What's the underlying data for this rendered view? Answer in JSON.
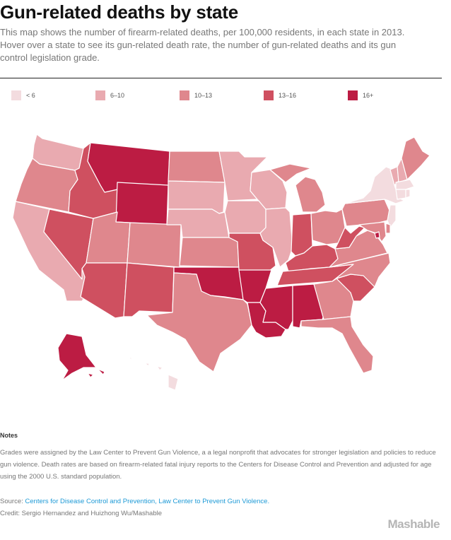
{
  "header": {
    "title": "Gun-related deaths by state",
    "subtitle": "This map shows the number of firearm-related deaths, per 100,000 residents, in each state in 2013. Hover over a state to see its gun-related death rate, the number of gun-related deaths and its gun control legislation grade."
  },
  "legend": [
    {
      "label": "< 6",
      "color": "#f3dcdf"
    },
    {
      "label": "6–10",
      "color": "#e9aab0"
    },
    {
      "label": "10–13",
      "color": "#df878d"
    },
    {
      "label": "13–16",
      "color": "#cf5060"
    },
    {
      "label": "16+",
      "color": "#bc1c43"
    }
  ],
  "map": {
    "states": {
      "WA": "6–10",
      "OR": "10–13",
      "CA": "6–10",
      "NV": "13–16",
      "ID": "13–16",
      "MT": "16+",
      "WY": "16+",
      "UT": "10–13",
      "AZ": "13–16",
      "CO": "10–13",
      "NM": "13–16",
      "ND": "10–13",
      "SD": "6–10",
      "NE": "6–10",
      "KS": "10–13",
      "OK": "16+",
      "TX": "10–13",
      "MN": "6–10",
      "IA": "6–10",
      "MO": "13–16",
      "AR": "16+",
      "LA": "16+",
      "WI": "6–10",
      "IL": "6–10",
      "MI": "10–13",
      "IN": "13–16",
      "OH": "10–13",
      "KY": "13–16",
      "TN": "13–16",
      "MS": "16+",
      "AL": "16+",
      "GA": "10–13",
      "FL": "10–13",
      "SC": "13–16",
      "NC": "10–13",
      "VA": "10–13",
      "WV": "13–16",
      "PA": "10–13",
      "NY": "< 6",
      "VT": "6–10",
      "NH": "6–10",
      "ME": "10–13",
      "MA": "< 6",
      "CT": "< 6",
      "RI": "< 6",
      "NJ": "< 6",
      "DE": "10–13",
      "MD": "10–13",
      "DC": "16+",
      "AK": "16+",
      "HI": "< 6"
    }
  },
  "notes": {
    "heading": "Notes",
    "text": "Grades were assigned by the Law Center to Prevent Gun Violence, a a legal nonprofit that advocates for stronger legislation and policies to reduce gun violence. Death rates are based on firearm-related fatal injury reports to the Centers for Disease Control and Prevention and adjusted for age using the 2000 U.S. standard population."
  },
  "source": {
    "label": "Source:",
    "links": "Centers for Disease Control and Prevention, Law Center to Prevent Gun Violence."
  },
  "credit": "Credit: Sergio Hernandez and Huizhong Wu/Mashable",
  "brand": "Mashable"
}
